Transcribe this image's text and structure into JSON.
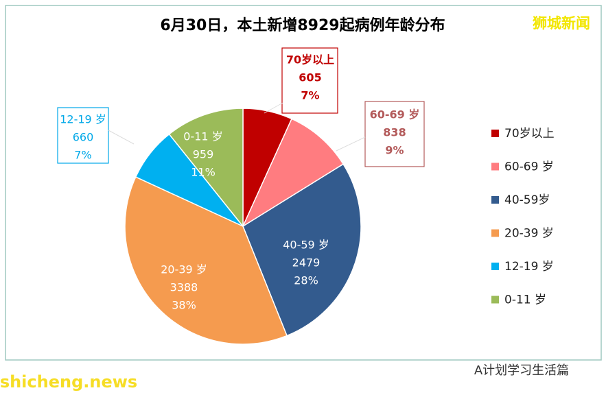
{
  "chart_data": {
    "type": "pie",
    "title": "6月30日，本土新增8929起病例年龄分布",
    "watermark": "狮城新闻",
    "site": "shicheng.news",
    "source": "A计划学习生活篇",
    "categories": [
      "70岁以上",
      "60-69 岁",
      "40-59 岁",
      "20-39 岁",
      "12-19 岁",
      "0-11 岁"
    ],
    "legend": [
      "70岁以上",
      "60-69 岁",
      "40-59岁",
      "20-39 岁",
      "12-19 岁",
      "0-11 岁"
    ],
    "values": [
      605,
      838,
      2479,
      3388,
      660,
      959
    ],
    "percents": [
      7,
      9,
      28,
      38,
      7,
      11
    ],
    "percent_labels": [
      "7%",
      "9%",
      "28%",
      "38%",
      "7%",
      "11%"
    ],
    "colors": [
      "#c00000",
      "#ff7c80",
      "#335b8e",
      "#f59b4f",
      "#00b0f0",
      "#9bbb59"
    ],
    "legend_position": "right"
  }
}
